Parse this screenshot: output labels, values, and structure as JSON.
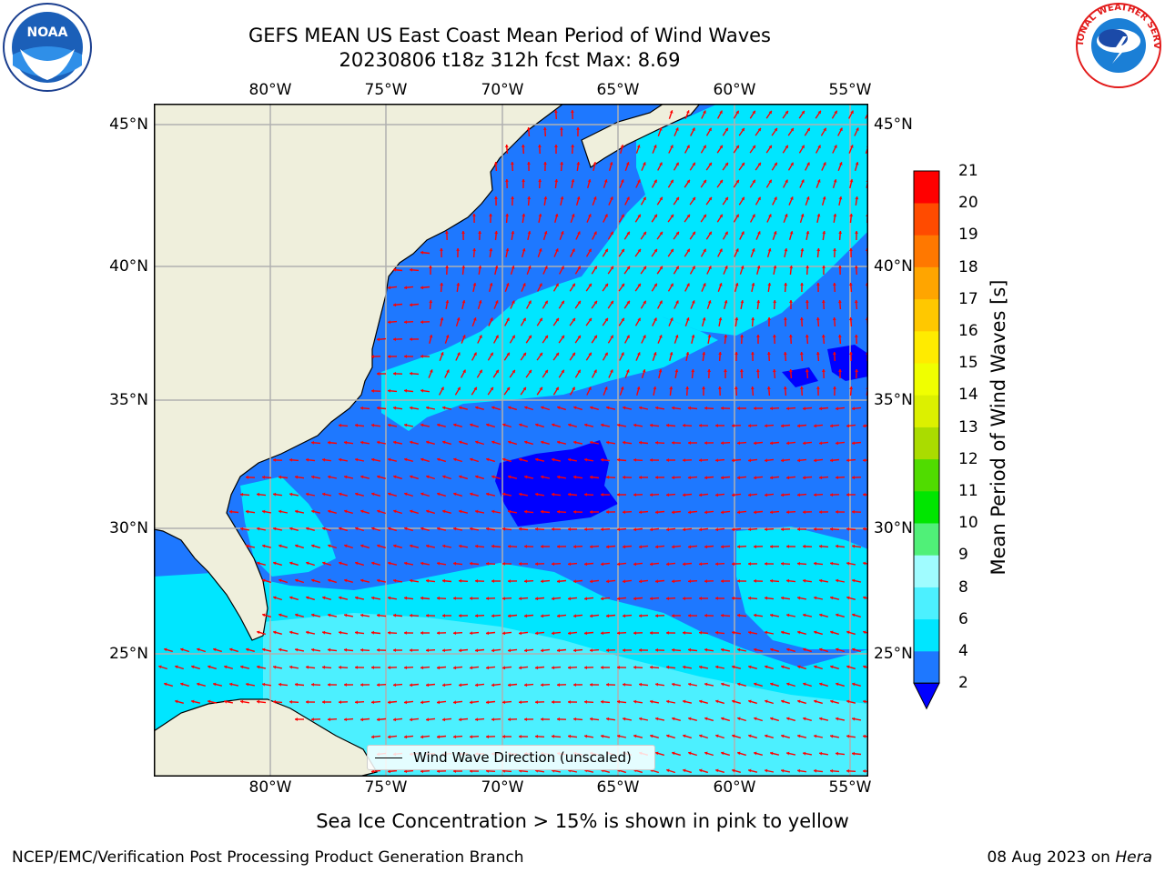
{
  "title": {
    "line1": "GEFS MEAN US East Coast Mean Period of Wind Waves",
    "line2": "20230806 t18z 312h fcst   Max: 8.69"
  },
  "logos": {
    "left": "NOAA",
    "right_text": "NATIONAL WEATHER SERVICE"
  },
  "axes": {
    "lon_ticks": [
      "80°W",
      "75°W",
      "70°W",
      "65°W",
      "60°W",
      "55°W"
    ],
    "lat_ticks": [
      "45°N",
      "40°N",
      "35°N",
      "30°N",
      "25°N"
    ],
    "lon_range": [
      -85,
      -54.5
    ],
    "lat_range": [
      20.5,
      46
    ]
  },
  "colorbar": {
    "label": "Mean Period of Wind Waves [s]",
    "ticks": [
      "2",
      "4",
      "6",
      "8",
      "9",
      "10",
      "11",
      "12",
      "13",
      "14",
      "15",
      "16",
      "17",
      "18",
      "19",
      "20",
      "21"
    ],
    "extend_color": "#0000ff",
    "colors": [
      "#1e78ff",
      "#00e6ff",
      "#4cf0ff",
      "#a0fcff",
      "#50f078",
      "#00e600",
      "#50dc00",
      "#aadc00",
      "#dcf000",
      "#f0ff00",
      "#ffeb00",
      "#ffc800",
      "#ffa500",
      "#ff7800",
      "#ff4b00",
      "#ff0000"
    ]
  },
  "legend": {
    "label": "Wind Wave Direction (unscaled)"
  },
  "subtitle": "Sea Ice Concentration > 15% is shown in pink to yellow",
  "footer": {
    "left": "NCEP/EMC/Verification Post Processing Product Generation Branch",
    "right_date": "08 Aug 2023 on",
    "right_host": "Hera"
  },
  "map_colors": {
    "land": "#efefdc",
    "ocean_mid": "#1e78ff",
    "ocean_light": "#00e6ff",
    "ocean_lighter": "#4cf0ff",
    "ocean_deep": "#0000ff",
    "grid": "#b0b0b0",
    "arrow": "#ff0000"
  }
}
